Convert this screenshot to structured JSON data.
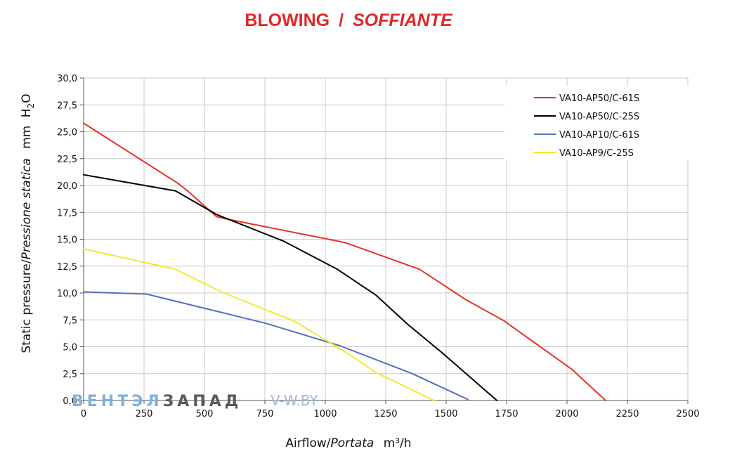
{
  "chart_data": {
    "type": "line",
    "title": {
      "main": "BLOWING",
      "separator": "/",
      "italic": "SOFFIANTE"
    },
    "xlabel": {
      "main": "Airflow",
      "separator": "/",
      "italic": "Portata",
      "unit": "m³/h"
    },
    "ylabel": {
      "main": "Static pressure",
      "separator": "/",
      "italic": "Pressione statica",
      "unit_prefix": "mm",
      "unit_main": "H",
      "unit_sub": "2",
      "unit_suffix": "O"
    },
    "xlim": [
      0,
      2500
    ],
    "ylim": [
      0,
      30
    ],
    "x_ticks": [
      0,
      250,
      500,
      750,
      1000,
      1250,
      1500,
      1750,
      2000,
      2250,
      2500
    ],
    "x_tick_labels": [
      "0",
      "250",
      "500",
      "750",
      "1000",
      "1250",
      "1500",
      "1750",
      "2000",
      "2250",
      "2500"
    ],
    "y_ticks": [
      0,
      2.5,
      5,
      7.5,
      10,
      12.5,
      15,
      17.5,
      20,
      22.5,
      25,
      27.5,
      30
    ],
    "y_tick_labels": [
      "0,0",
      "2,5",
      "5,0",
      "7,5",
      "10,0",
      "12,5",
      "15,0",
      "17,5",
      "20,0",
      "22,5",
      "25,0",
      "27,5",
      "30,0"
    ],
    "grid": true,
    "legend_position": "top-right",
    "series": [
      {
        "name": "VA10-AP50/C-61S",
        "color": "#e8322a",
        "points": [
          [
            0,
            25.8
          ],
          [
            390,
            20.2
          ],
          [
            430,
            19.5
          ],
          [
            550,
            17.1
          ],
          [
            610,
            16.8
          ],
          [
            1080,
            14.7
          ],
          [
            1390,
            12.2
          ],
          [
            1580,
            9.4
          ],
          [
            1740,
            7.4
          ],
          [
            2020,
            2.9
          ],
          [
            2160,
            0
          ]
        ]
      },
      {
        "name": "VA10-AP50/C-25S",
        "color": "#000000",
        "points": [
          [
            0,
            21.0
          ],
          [
            380,
            19.5
          ],
          [
            550,
            17.3
          ],
          [
            830,
            14.8
          ],
          [
            1050,
            12.2
          ],
          [
            1210,
            9.8
          ],
          [
            1340,
            7.1
          ],
          [
            1480,
            4.5
          ],
          [
            1710,
            0
          ]
        ]
      },
      {
        "name": "VA10-AP10/C-61S",
        "color": "#5470c0",
        "points": [
          [
            0,
            10.1
          ],
          [
            260,
            9.9
          ],
          [
            750,
            7.2
          ],
          [
            1060,
            5.1
          ],
          [
            1360,
            2.5
          ],
          [
            1590,
            0.1
          ]
        ]
      },
      {
        "name": "VA10-AP9/C-25S",
        "color": "#f0ea30",
        "points": [
          [
            0,
            14.1
          ],
          [
            380,
            12.2
          ],
          [
            570,
            10.1
          ],
          [
            870,
            7.4
          ],
          [
            1070,
            4.7
          ],
          [
            1210,
            2.6
          ],
          [
            1450,
            0
          ]
        ]
      }
    ]
  },
  "watermark": {
    "part1": "ВЕНТЭЛ",
    "part2": "ЗАПАД",
    "url": "V-W.BY"
  }
}
